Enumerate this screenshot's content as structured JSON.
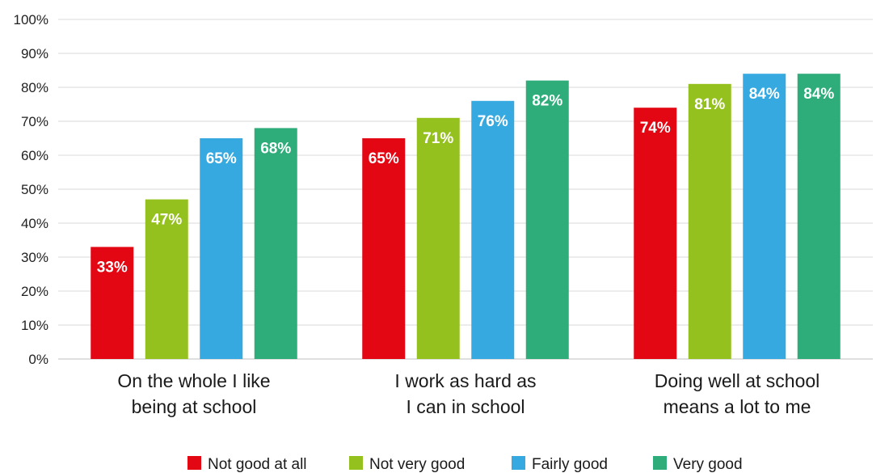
{
  "chart_data": {
    "type": "bar",
    "title": "",
    "xlabel": "",
    "ylabel": "",
    "ylim": [
      0,
      100
    ],
    "y_ticks": [
      "0%",
      "10%",
      "20%",
      "30%",
      "40%",
      "50%",
      "60%",
      "70%",
      "80%",
      "90%",
      "100%"
    ],
    "grid": true,
    "legend_position": "bottom",
    "categories": [
      [
        "On the whole I like",
        "being at school"
      ],
      [
        "I work as hard as",
        "I can in school"
      ],
      [
        "Doing well at school",
        "means a lot to me"
      ]
    ],
    "series": [
      {
        "name": "Not good at all",
        "color": "#e30613",
        "values": [
          33,
          65,
          74
        ],
        "labels": [
          "33%",
          "65%",
          "74%"
        ]
      },
      {
        "name": "Not very good",
        "color": "#95c11f",
        "values": [
          47,
          71,
          81
        ],
        "labels": [
          "47%",
          "71%",
          "81%"
        ]
      },
      {
        "name": "Fairly good",
        "color": "#36a9e1",
        "values": [
          65,
          76,
          84
        ],
        "labels": [
          "65%",
          "76%",
          "84%"
        ]
      },
      {
        "name": "Very good",
        "color": "#2eac7a",
        "values": [
          68,
          82,
          84
        ],
        "labels": [
          "68%",
          "82%",
          "84%"
        ]
      }
    ]
  }
}
